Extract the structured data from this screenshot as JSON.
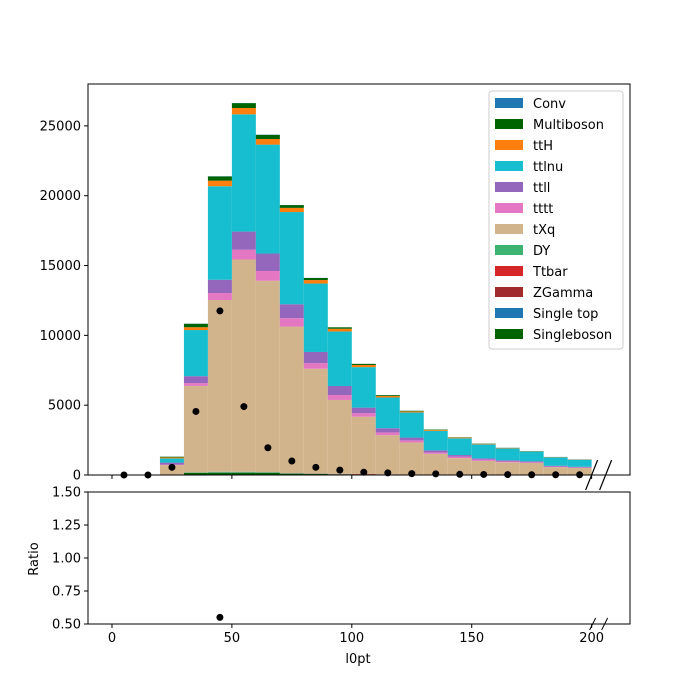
{
  "chart_data": {
    "type": "bar",
    "stacked": true,
    "x_bin_edges": [
      0,
      10,
      20,
      30,
      40,
      50,
      60,
      70,
      80,
      90,
      100,
      110,
      120,
      130,
      140,
      150,
      160,
      170,
      180,
      190,
      200
    ],
    "x_range": [
      -10,
      216
    ],
    "main": {
      "ylim": [
        0,
        28000
      ],
      "yticks": [
        0,
        5000,
        10000,
        15000,
        20000,
        25000
      ],
      "series": [
        {
          "name": "Singleboson",
          "color": "#006400",
          "values": [
            0,
            0,
            0,
            150,
            150,
            150,
            150,
            100,
            80,
            50,
            30,
            20,
            10,
            5,
            0,
            0,
            0,
            0,
            0,
            0
          ]
        },
        {
          "name": "Single top",
          "color": "#1f77b4",
          "values": [
            0,
            0,
            0,
            10,
            10,
            10,
            10,
            10,
            10,
            5,
            5,
            5,
            5,
            0,
            0,
            0,
            0,
            0,
            0,
            0
          ]
        },
        {
          "name": "ZGamma",
          "color": "#a02c2c",
          "values": [
            0,
            0,
            0,
            0,
            0,
            0,
            0,
            0,
            0,
            0,
            0,
            0,
            0,
            0,
            0,
            0,
            0,
            0,
            0,
            0
          ]
        },
        {
          "name": "Ttbar",
          "color": "#d62728",
          "values": [
            0,
            0,
            0,
            0,
            10,
            10,
            10,
            10,
            10,
            10,
            30,
            20,
            10,
            5,
            5,
            5,
            5,
            5,
            5,
            5
          ]
        },
        {
          "name": "DY",
          "color": "#3cb371",
          "values": [
            0,
            0,
            10,
            20,
            60,
            60,
            40,
            10,
            10,
            10,
            10,
            5,
            5,
            5,
            5,
            5,
            5,
            5,
            5,
            5
          ]
        },
        {
          "name": "tXq",
          "color": "#d2b48c",
          "values": [
            0,
            0,
            700,
            6200,
            12300,
            15200,
            13700,
            10500,
            7500,
            5300,
            4100,
            2800,
            2300,
            1500,
            1200,
            1000,
            900,
            850,
            550,
            500
          ]
        },
        {
          "name": "tttt",
          "color": "#e377c2",
          "values": [
            0,
            0,
            30,
            200,
            500,
            700,
            700,
            600,
            400,
            350,
            250,
            200,
            150,
            100,
            100,
            80,
            60,
            50,
            40,
            30
          ]
        },
        {
          "name": "ttll",
          "color": "#9467bd",
          "values": [
            0,
            0,
            150,
            500,
            950,
            1300,
            1250,
            1000,
            800,
            650,
            400,
            300,
            200,
            150,
            120,
            100,
            80,
            70,
            60,
            50
          ]
        },
        {
          "name": "ttlnu",
          "color": "#17becf",
          "values": [
            0,
            0,
            300,
            3300,
            6700,
            8400,
            7800,
            6600,
            4900,
            3900,
            2900,
            2200,
            1800,
            1400,
            1200,
            1000,
            850,
            700,
            600,
            500
          ]
        },
        {
          "name": "ttH",
          "color": "#ff7f0e",
          "values": [
            0,
            0,
            70,
            200,
            400,
            450,
            400,
            300,
            250,
            200,
            150,
            110,
            80,
            60,
            50,
            40,
            30,
            25,
            20,
            15
          ]
        },
        {
          "name": "Multiboson",
          "color": "#006400",
          "values": [
            0,
            0,
            50,
            250,
            300,
            350,
            300,
            200,
            150,
            100,
            80,
            60,
            40,
            30,
            20,
            20,
            15,
            10,
            10,
            10
          ]
        },
        {
          "name": "Conv",
          "color": "#1f77b4",
          "values": [
            0,
            0,
            5,
            10,
            10,
            10,
            10,
            5,
            5,
            5,
            5,
            5,
            5,
            5,
            5,
            5,
            5,
            5,
            5,
            5
          ]
        }
      ],
      "data_points": {
        "x": [
          5,
          15,
          25,
          35,
          45,
          55,
          65,
          75,
          85,
          95,
          105,
          115,
          125,
          135,
          145,
          155,
          165,
          175,
          185,
          195
        ],
        "y": [
          0,
          0,
          550,
          4550,
          11750,
          4900,
          1950,
          1000,
          550,
          350,
          200,
          150,
          100,
          80,
          50,
          40,
          30,
          20,
          20,
          20
        ]
      },
      "legend": {
        "placement": "upper-right",
        "entries": [
          "Conv",
          "Multiboson",
          "ttH",
          "ttlnu",
          "ttll",
          "tttt",
          "tXq",
          "DY",
          "Ttbar",
          "ZGamma",
          "Single top",
          "Singleboson"
        ]
      }
    },
    "ratio": {
      "ylabel": "Ratio",
      "ylim": [
        0.5,
        1.5
      ],
      "yticks": [
        "0.50",
        "0.75",
        "1.00",
        "1.25",
        "1.50"
      ],
      "points": {
        "x": [
          45
        ],
        "y": [
          0.55
        ]
      }
    },
    "xlabel": "l0pt",
    "xticks": [
      0,
      50,
      100,
      150,
      200
    ],
    "axis_break_at": 200
  }
}
